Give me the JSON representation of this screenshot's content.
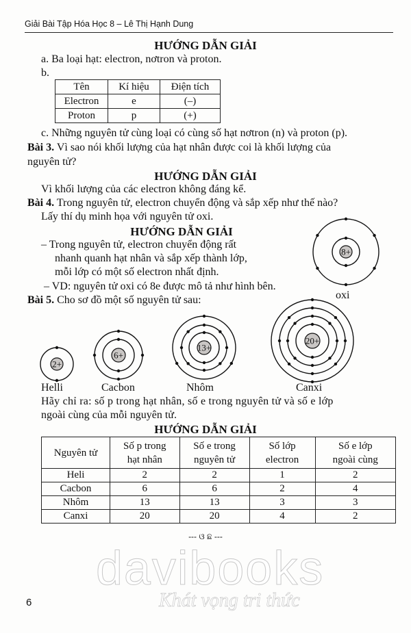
{
  "header": {
    "title": "Giải Bài Tập Hóa Học 8 – Lê Thị Hạnh Dung"
  },
  "solution_heading": "HƯỚNG DẪN GIẢI",
  "bai2": {
    "a": "a. Ba loại hạt: electron, nơtron và proton.",
    "b": "b.",
    "table": {
      "headers": [
        "Tên",
        "Kí hiệu",
        "Điện tích"
      ],
      "rows": [
        [
          "Electron",
          "e",
          "(–)"
        ],
        [
          "Proton",
          "p",
          "(+)"
        ]
      ]
    },
    "c": "c. Những nguyên tử cùng loại có cùng số hạt nơtron (n) và proton (p)."
  },
  "bai3": {
    "label": "Bài 3.",
    "question_1": "Vì sao nói khối lượng của hạt nhân được coi là khối lượng của",
    "question_2": "nguyên tử?",
    "answer": "Vì khối lượng của các electron không đáng kể."
  },
  "bai4": {
    "label": "Bài 4.",
    "question_1": "Trong nguyên tử, electron chuyển động và sắp xếp như thế nào?",
    "question_2": "Lấy thí dụ minh họa với nguyên tử oxi.",
    "answer_1": "– Trong nguyên tử, electron chuyển động rất",
    "answer_2": "nhanh quanh hạt nhân và sắp xếp thành lớp,",
    "answer_3": "mỗi lớp có một số electron nhất định.",
    "answer_4": "– VD: nguyên tử oxi có 8e được mô tả như hình bên.",
    "oxi": {
      "label": "oxi",
      "nucleus": "8+",
      "shells": [
        2,
        6
      ]
    }
  },
  "bai5": {
    "label": "Bài 5.",
    "question": "Cho sơ đồ một số nguyên tử sau:",
    "atoms": [
      {
        "label": "Helli",
        "nucleus": "2+",
        "shells": [
          2
        ]
      },
      {
        "label": "Cacbon",
        "nucleus": "6+",
        "shells": [
          2,
          4
        ]
      },
      {
        "label": "Nhôm",
        "nucleus": "13+",
        "shells": [
          2,
          8,
          3
        ]
      },
      {
        "label": "Canxi",
        "nucleus": "20+",
        "shells": [
          2,
          8,
          8,
          2
        ]
      }
    ],
    "task_1": "Hãy chỉ ra: số p trong hạt nhân, số e trong nguyên tử và số e lớp",
    "task_2": "ngoài cùng của mỗi nguyên tử.",
    "table": {
      "headers": [
        [
          "Nguyên tử"
        ],
        [
          "Số p trong",
          "hạt nhân"
        ],
        [
          "Số e trong",
          "nguyên tử"
        ],
        [
          "Số lớp",
          "electron"
        ],
        [
          "Số e lớp",
          "ngoài cùng"
        ]
      ],
      "rows": [
        [
          "Heli",
          "2",
          "2",
          "1",
          "2"
        ],
        [
          "Cacbon",
          "6",
          "6",
          "2",
          "4"
        ],
        [
          "Nhôm",
          "13",
          "13",
          "3",
          "3"
        ],
        [
          "Canxi",
          "20",
          "20",
          "4",
          "2"
        ]
      ]
    }
  },
  "divider": "--- ଓ ଛ ---",
  "watermark": {
    "brand": "davibooks",
    "slogan": "Khát vọng tri thức"
  },
  "page_number": "6"
}
